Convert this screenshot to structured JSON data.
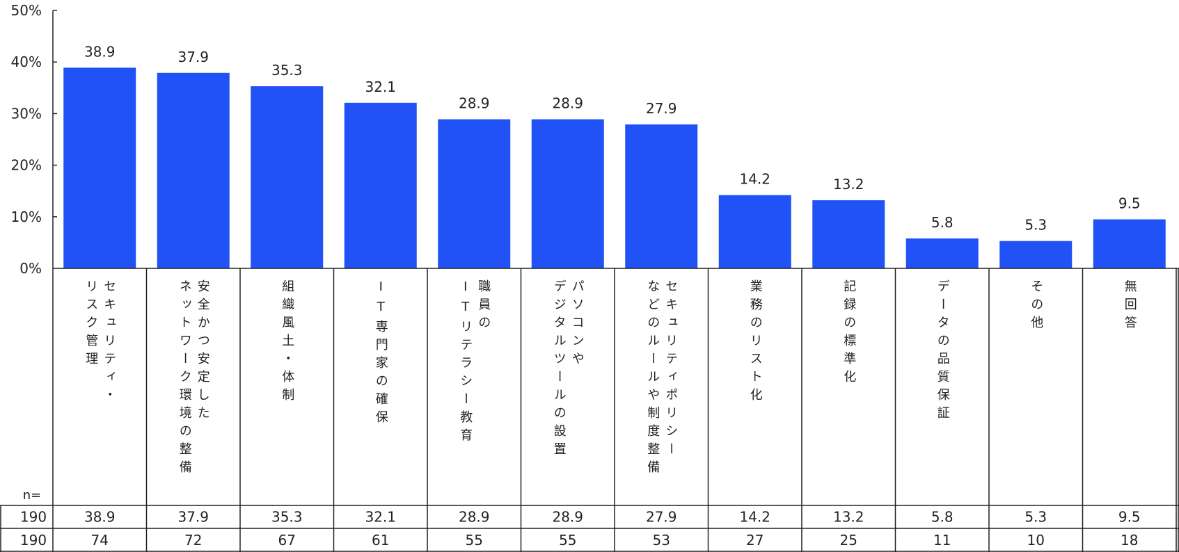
{
  "chart_data": {
    "type": "bar",
    "ylim": [
      0,
      50
    ],
    "yticks": [
      "0%",
      "10%",
      "20%",
      "30%",
      "40%",
      "50%"
    ],
    "categories": [
      [
        "セキュリティ・",
        "リスク管理"
      ],
      [
        "安全かつ安定した",
        "ネットワーク環境の整備"
      ],
      [
        "組織風土・体制"
      ],
      [
        "IT専門家の確保"
      ],
      [
        "職員の",
        "ITリテラシー教育"
      ],
      [
        "パソコンや",
        "デジタルツールの設置"
      ],
      [
        "セキュリティポリシー",
        "などのルールや制度整備"
      ],
      [
        "業務のリスト化"
      ],
      [
        "記録の標準化"
      ],
      [
        "データの品質保証"
      ],
      [
        "その他"
      ],
      [
        "無回答"
      ]
    ],
    "values": [
      38.9,
      37.9,
      35.3,
      32.1,
      28.9,
      28.9,
      27.9,
      14.2,
      13.2,
      5.8,
      5.3,
      9.5
    ],
    "data_labels": [
      "38.9",
      "37.9",
      "35.3",
      "32.1",
      "28.9",
      "28.9",
      "27.9",
      "14.2",
      "13.2",
      "5.8",
      "5.3",
      "9.5"
    ],
    "bar_color": "#2152f5",
    "table": {
      "n_label": "n=",
      "rows": [
        {
          "n": "190",
          "cells": [
            "38.9",
            "37.9",
            "35.3",
            "32.1",
            "28.9",
            "28.9",
            "27.9",
            "14.2",
            "13.2",
            "5.8",
            "5.3",
            "9.5"
          ]
        },
        {
          "n": "190",
          "cells": [
            "74",
            "72",
            "67",
            "61",
            "55",
            "55",
            "53",
            "27",
            "25",
            "11",
            "10",
            "18"
          ]
        }
      ]
    }
  }
}
